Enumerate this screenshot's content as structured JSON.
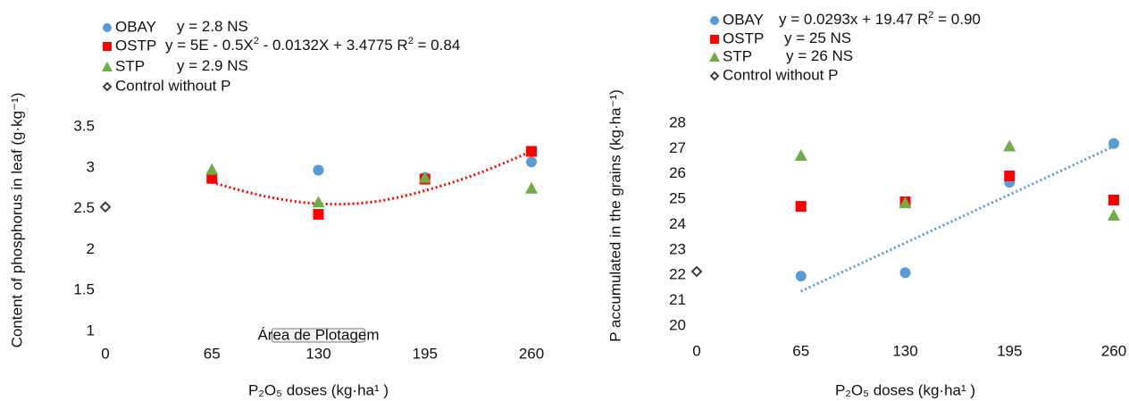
{
  "chart_data": [
    {
      "type": "scatter",
      "x_label": "P₂O₅ doses  (kg·ha¹ )",
      "y_label": "Content of phosphorus in leaf (g·kg⁻¹)",
      "xlim": [
        0,
        260
      ],
      "xticks": [
        0,
        65,
        130,
        195,
        260
      ],
      "ylim": [
        1,
        3.5
      ],
      "yticks": [
        1,
        1.5,
        2,
        2.5,
        3,
        3.5
      ],
      "series": [
        {
          "name": "OBAY",
          "color": "#5b9bd5",
          "marker": "circle",
          "x": [
            130,
            195,
            260
          ],
          "values": [
            2.97,
            2.88,
            3.07
          ],
          "equation": [
            "y = 2.8 NS"
          ]
        },
        {
          "name": "OSTP",
          "color": "#ff0000",
          "marker": "square",
          "x": [
            65,
            130,
            195,
            260
          ],
          "values": [
            2.87,
            2.43,
            2.86,
            3.2
          ],
          "equation": [
            "y = 5E - 0.5X",
            "2",
            " - 0.0132X + 3.4775 R",
            "2",
            " = 0.84"
          ]
        },
        {
          "name": "STP",
          "color": "#70ad47",
          "marker": "triangle",
          "x": [
            65,
            130,
            195,
            260
          ],
          "values": [
            2.98,
            2.58,
            2.88,
            2.75
          ],
          "equation": [
            "y = 2.9 NS"
          ]
        },
        {
          "name": "Control without P",
          "color": "#404040",
          "marker": "diamond",
          "x": [
            0
          ],
          "values": [
            2.52
          ]
        }
      ],
      "trendline": {
        "color": "#ff0000",
        "x": [
          65,
          97.5,
          130,
          162.5,
          195,
          227.5,
          260
        ],
        "values": [
          2.82,
          2.65,
          2.56,
          2.58,
          2.72,
          2.93,
          3.2
        ]
      },
      "annotation": "Área de Plotagem"
    },
    {
      "type": "scatter",
      "x_label": "P₂O₅ doses  (kg·ha¹ )",
      "y_label": "P accumulated in the grains  (kg·ha⁻¹)",
      "xlim": [
        0,
        260
      ],
      "xticks": [
        0,
        65,
        130,
        195,
        260
      ],
      "ylim": [
        20,
        28
      ],
      "yticks": [
        20,
        21,
        22,
        23,
        24,
        25,
        26,
        27,
        28
      ],
      "series": [
        {
          "name": "OBAY",
          "color": "#5b9bd5",
          "marker": "circle",
          "x": [
            65,
            130,
            195,
            260
          ],
          "values": [
            21.97,
            22.1,
            25.67,
            27.2
          ],
          "equation": [
            "y = 0.0293x + 19.47 R",
            "2",
            " = 0.90"
          ]
        },
        {
          "name": "OSTP",
          "color": "#ff0000",
          "marker": "square",
          "x": [
            65,
            130,
            195,
            260
          ],
          "values": [
            24.72,
            24.9,
            25.92,
            24.97
          ],
          "equation": [
            "y = 25 NS"
          ]
        },
        {
          "name": "STP",
          "color": "#70ad47",
          "marker": "triangle",
          "x": [
            65,
            130,
            195,
            260
          ],
          "values": [
            26.73,
            24.86,
            27.1,
            24.37
          ],
          "equation": [
            "y = 26 NS"
          ]
        },
        {
          "name": "Control without P",
          "color": "#404040",
          "marker": "diamond",
          "x": [
            0
          ],
          "values": [
            22.15
          ]
        }
      ],
      "trendline": {
        "color": "#5b9bd5",
        "x": [
          65,
          260
        ],
        "values": [
          21.37,
          27.09
        ]
      }
    }
  ]
}
